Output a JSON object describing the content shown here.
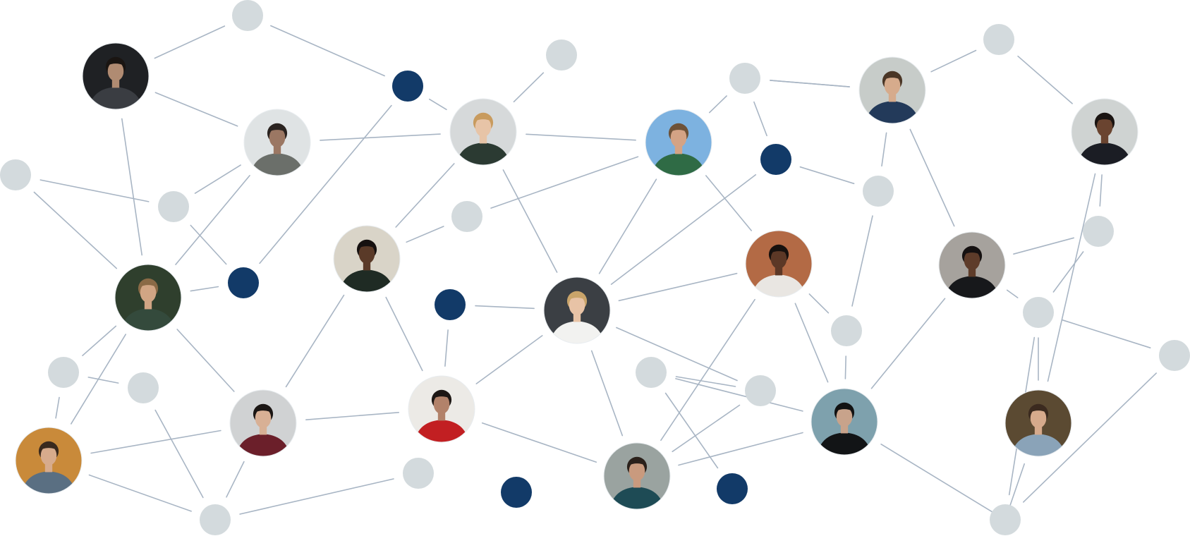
{
  "colors": {
    "background": "#ffffff",
    "edge": "#a8b5c4",
    "gray_dot": "#d3dadd",
    "navy_dot": "#123a68",
    "avatar_ring": "#e8ecef"
  },
  "legend": [],
  "nodes": [
    {
      "id": "g1",
      "kind": "gray-dot"
    },
    {
      "id": "g2",
      "kind": "gray-dot"
    },
    {
      "id": "g3",
      "kind": "gray-dot"
    },
    {
      "id": "g4",
      "kind": "gray-dot"
    },
    {
      "id": "g5",
      "kind": "gray-dot"
    },
    {
      "id": "g6",
      "kind": "gray-dot"
    },
    {
      "id": "g7",
      "kind": "gray-dot"
    },
    {
      "id": "g8",
      "kind": "gray-dot"
    },
    {
      "id": "g9",
      "kind": "gray-dot"
    },
    {
      "id": "g10",
      "kind": "gray-dot"
    },
    {
      "id": "g11",
      "kind": "gray-dot"
    },
    {
      "id": "g12",
      "kind": "gray-dot"
    },
    {
      "id": "g13",
      "kind": "gray-dot"
    },
    {
      "id": "g14",
      "kind": "gray-dot"
    },
    {
      "id": "g15",
      "kind": "gray-dot"
    },
    {
      "id": "g16",
      "kind": "gray-dot"
    },
    {
      "id": "g17",
      "kind": "gray-dot"
    },
    {
      "id": "g18",
      "kind": "gray-dot"
    },
    {
      "id": "g19",
      "kind": "gray-dot"
    },
    {
      "id": "g20",
      "kind": "gray-dot"
    },
    {
      "id": "n1",
      "kind": "navy-dot"
    },
    {
      "id": "n2",
      "kind": "navy-dot"
    },
    {
      "id": "n3",
      "kind": "navy-dot"
    },
    {
      "id": "n4",
      "kind": "navy-dot"
    },
    {
      "id": "n5",
      "kind": "navy-dot"
    },
    {
      "id": "n6",
      "kind": "navy-dot"
    },
    {
      "id": "p1",
      "kind": "avatar",
      "icon": "person-dark-suit",
      "bg": "#1f2124",
      "shirt": "#3a3d42",
      "skin": "#b08b72",
      "hair": "#1a1512"
    },
    {
      "id": "p2",
      "kind": "avatar",
      "icon": "person-street-wall",
      "bg": "#dfe3e4",
      "shirt": "#6b6f6a",
      "skin": "#9b7763",
      "hair": "#2a2320"
    },
    {
      "id": "p3",
      "kind": "avatar",
      "icon": "person-blond-closeup",
      "bg": "#d6d9da",
      "shirt": "#2b3a32",
      "skin": "#e7c4a7",
      "hair": "#c89b5e"
    },
    {
      "id": "p4",
      "kind": "avatar",
      "icon": "person-green-jacket",
      "bg": "#7db2e0",
      "shirt": "#2f6b45",
      "skin": "#d4a385",
      "hair": "#6e5238"
    },
    {
      "id": "p5",
      "kind": "avatar",
      "icon": "person-navy-jacket",
      "bg": "#c7ccc9",
      "shirt": "#233a5a",
      "skin": "#d6ab8c",
      "hair": "#4a3626"
    },
    {
      "id": "p6",
      "kind": "avatar",
      "icon": "person-black-shirt",
      "bg": "#cfd3d2",
      "shirt": "#1b1d24",
      "skin": "#6a4430",
      "hair": "#1a1412"
    },
    {
      "id": "p7",
      "kind": "avatar",
      "icon": "person-forest-coat",
      "bg": "#2f3f2d",
      "shirt": "#344a3c",
      "skin": "#d1a584",
      "hair": "#8a6a46"
    },
    {
      "id": "p8",
      "kind": "avatar",
      "icon": "person-dark-turtleneck",
      "bg": "#d9d4c8",
      "shirt": "#1f2b24",
      "skin": "#5a3a28",
      "hair": "#161110"
    },
    {
      "id": "p9",
      "kind": "avatar",
      "icon": "person-white-tee",
      "bg": "#3b3f44",
      "shirt": "#f2f2f0",
      "skin": "#e8c3a6",
      "hair": "#c9a46a"
    },
    {
      "id": "p10",
      "kind": "avatar",
      "icon": "person-smiling-beard",
      "bg": "#b36a45",
      "shirt": "#e9e6e2",
      "skin": "#5c3826",
      "hair": "#17110e"
    },
    {
      "id": "p11",
      "kind": "avatar",
      "icon": "person-black-outfit",
      "bg": "#a6a29d",
      "shirt": "#17181b",
      "skin": "#5e3c2a",
      "hair": "#151111"
    },
    {
      "id": "p12",
      "kind": "avatar",
      "icon": "person-denim-jacket",
      "bg": "#c98a3a",
      "shirt": "#5a6f82",
      "skin": "#d7ab8c",
      "hair": "#3a2a1e"
    },
    {
      "id": "p13",
      "kind": "avatar",
      "icon": "person-maroon-blazer",
      "bg": "#d0d2d3",
      "shirt": "#6b1f2a",
      "skin": "#d8b095",
      "hair": "#1b1614"
    },
    {
      "id": "p14",
      "kind": "avatar",
      "icon": "person-red-shirt-glasses",
      "bg": "#eceae6",
      "shirt": "#c21f22",
      "skin": "#b2826a",
      "hair": "#1d1714"
    },
    {
      "id": "p15",
      "kind": "avatar",
      "icon": "person-teal-shirt",
      "bg": "#9aa3a0",
      "shirt": "#1e4b55",
      "skin": "#c99a7e",
      "hair": "#2b211b"
    },
    {
      "id": "p16",
      "kind": "avatar",
      "icon": "person-black-hoodie",
      "bg": "#7ea1ad",
      "shirt": "#121416",
      "skin": "#c8a38b",
      "hair": "#121212"
    },
    {
      "id": "p17",
      "kind": "avatar",
      "icon": "person-blue-shirt-plants",
      "bg": "#5b4a32",
      "shirt": "#8aa3b8",
      "skin": "#d6aa8c",
      "hair": "#3b2a1f"
    }
  ],
  "edges": [
    [
      "g1",
      "p1"
    ],
    [
      "g1",
      "n1"
    ],
    [
      "p1",
      "p2"
    ],
    [
      "p1",
      "p7"
    ],
    [
      "n1",
      "p3"
    ],
    [
      "n1",
      "n3"
    ],
    [
      "g2",
      "p3"
    ],
    [
      "p2",
      "p3"
    ],
    [
      "p2",
      "g4"
    ],
    [
      "p2",
      "p7"
    ],
    [
      "g3",
      "g4"
    ],
    [
      "g3",
      "p7"
    ],
    [
      "g4",
      "n3"
    ],
    [
      "p7",
      "n3"
    ],
    [
      "p3",
      "p4"
    ],
    [
      "p3",
      "p8"
    ],
    [
      "p3",
      "p9"
    ],
    [
      "g5",
      "p8"
    ],
    [
      "g5",
      "p4"
    ],
    [
      "p4",
      "g6"
    ],
    [
      "p4",
      "p9"
    ],
    [
      "p4",
      "p10"
    ],
    [
      "g6",
      "n2"
    ],
    [
      "g6",
      "p5"
    ],
    [
      "n2",
      "p9"
    ],
    [
      "n2",
      "g7"
    ],
    [
      "p5",
      "g7"
    ],
    [
      "p5",
      "g8"
    ],
    [
      "p5",
      "p11"
    ],
    [
      "g7",
      "g12"
    ],
    [
      "g8",
      "p6"
    ],
    [
      "g6",
      "p5"
    ],
    [
      "p6",
      "g9"
    ],
    [
      "p6",
      "p17"
    ],
    [
      "g9",
      "p11"
    ],
    [
      "g9",
      "g10"
    ],
    [
      "g10",
      "p17"
    ],
    [
      "g10",
      "g11"
    ],
    [
      "p11",
      "g10"
    ],
    [
      "p11",
      "p16"
    ],
    [
      "p10",
      "p9"
    ],
    [
      "p10",
      "g12"
    ],
    [
      "p10",
      "p16"
    ],
    [
      "p10",
      "p15"
    ],
    [
      "g12",
      "p16"
    ],
    [
      "p16",
      "g13"
    ],
    [
      "p16",
      "p15"
    ],
    [
      "p16",
      "g20"
    ],
    [
      "g13",
      "n5"
    ],
    [
      "g13",
      "g14"
    ],
    [
      "g14",
      "p15"
    ],
    [
      "p9",
      "g14"
    ],
    [
      "p9",
      "p14"
    ],
    [
      "p9",
      "p15"
    ],
    [
      "n4",
      "p9"
    ],
    [
      "n4",
      "p14"
    ],
    [
      "p8",
      "p14"
    ],
    [
      "p8",
      "p13"
    ],
    [
      "p14",
      "p13"
    ],
    [
      "p14",
      "g17"
    ],
    [
      "p14",
      "p15"
    ],
    [
      "p13",
      "p12"
    ],
    [
      "p13",
      "g18"
    ],
    [
      "p13",
      "p7"
    ],
    [
      "p12",
      "g18"
    ],
    [
      "p12",
      "g15"
    ],
    [
      "p12",
      "p7"
    ],
    [
      "g15",
      "g16"
    ],
    [
      "g15",
      "p7"
    ],
    [
      "g16",
      "g18"
    ],
    [
      "g17",
      "g18"
    ],
    [
      "p17",
      "g20"
    ],
    [
      "g11",
      "g19"
    ],
    [
      "g10",
      "g19"
    ]
  ]
}
